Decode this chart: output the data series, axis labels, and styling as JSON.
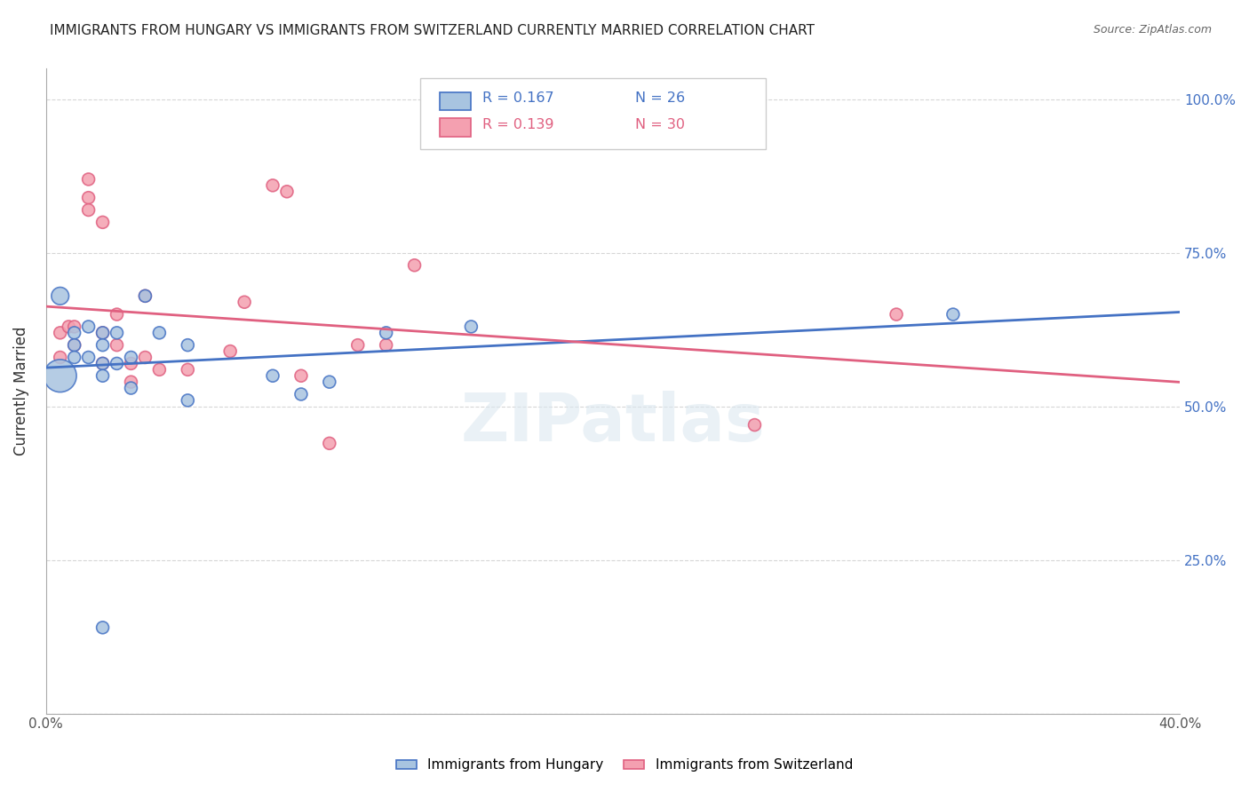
{
  "title": "IMMIGRANTS FROM HUNGARY VS IMMIGRANTS FROM SWITZERLAND CURRENTLY MARRIED CORRELATION CHART",
  "source": "Source: ZipAtlas.com",
  "ylabel": "Currently Married",
  "xmin": 0.0,
  "xmax": 0.4,
  "ymin": 0.0,
  "ymax": 1.05,
  "yticks": [
    0.0,
    0.25,
    0.5,
    0.75,
    1.0
  ],
  "ytick_labels": [
    "",
    "25.0%",
    "50.0%",
    "75.0%",
    "100.0%"
  ],
  "xticks": [
    0.0,
    0.1,
    0.2,
    0.3,
    0.4
  ],
  "xtick_labels": [
    "0.0%",
    "",
    "",
    "",
    "40.0%"
  ],
  "legend_R1": "0.167",
  "legend_N1": "26",
  "legend_R2": "0.139",
  "legend_N2": "30",
  "legend_label1": "Immigrants from Hungary",
  "legend_label2": "Immigrants from Switzerland",
  "color_hungary": "#a8c4e0",
  "color_switzerland": "#f4a0b0",
  "color_line_hungary": "#4472c4",
  "color_line_switzerland": "#e06080",
  "watermark": "ZIPatlas",
  "hungary_x": [
    0.005,
    0.01,
    0.01,
    0.01,
    0.015,
    0.015,
    0.02,
    0.02,
    0.02,
    0.02,
    0.025,
    0.025,
    0.03,
    0.03,
    0.035,
    0.04,
    0.05,
    0.05,
    0.08,
    0.09,
    0.1,
    0.12,
    0.15,
    0.32,
    0.02,
    0.005
  ],
  "hungary_y": [
    0.68,
    0.62,
    0.6,
    0.58,
    0.63,
    0.58,
    0.62,
    0.6,
    0.57,
    0.55,
    0.62,
    0.57,
    0.58,
    0.53,
    0.68,
    0.62,
    0.6,
    0.51,
    0.55,
    0.52,
    0.54,
    0.62,
    0.63,
    0.65,
    0.14,
    0.55
  ],
  "hungary_sizes": [
    200,
    100,
    100,
    100,
    100,
    100,
    100,
    100,
    100,
    100,
    100,
    100,
    100,
    100,
    100,
    100,
    100,
    100,
    100,
    100,
    100,
    100,
    100,
    100,
    100,
    700
  ],
  "switzerland_x": [
    0.005,
    0.008,
    0.01,
    0.01,
    0.015,
    0.015,
    0.015,
    0.02,
    0.02,
    0.02,
    0.025,
    0.025,
    0.03,
    0.03,
    0.035,
    0.035,
    0.04,
    0.05,
    0.065,
    0.07,
    0.08,
    0.085,
    0.09,
    0.1,
    0.11,
    0.12,
    0.13,
    0.25,
    0.3,
    0.005
  ],
  "switzerland_y": [
    0.62,
    0.63,
    0.63,
    0.6,
    0.87,
    0.84,
    0.82,
    0.8,
    0.62,
    0.57,
    0.65,
    0.6,
    0.57,
    0.54,
    0.68,
    0.58,
    0.56,
    0.56,
    0.59,
    0.67,
    0.86,
    0.85,
    0.55,
    0.44,
    0.6,
    0.6,
    0.73,
    0.47,
    0.65,
    0.58
  ],
  "switzerland_sizes": [
    100,
    100,
    100,
    100,
    100,
    100,
    100,
    100,
    100,
    100,
    100,
    100,
    100,
    100,
    100,
    100,
    100,
    100,
    100,
    100,
    100,
    100,
    100,
    100,
    100,
    100,
    100,
    100,
    100,
    100
  ]
}
